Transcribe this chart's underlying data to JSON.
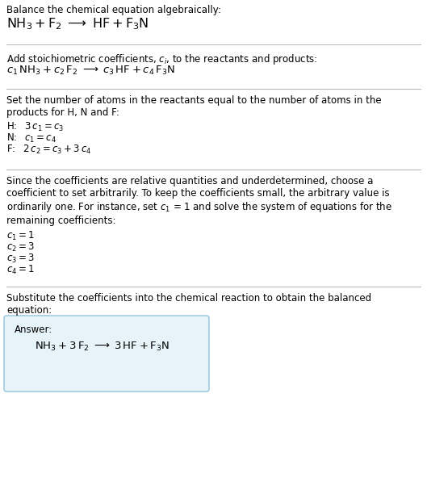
{
  "bg_color": "#ffffff",
  "separator_color": "#bbbbbb",
  "box_edge_color": "#90c4d8",
  "box_face_color": "#e6f4f9",
  "text_color": "#000000",
  "fs_small": 8.0,
  "fs_body": 8.5,
  "fs_chem_large": 11.5,
  "fs_chem_med": 9.5,
  "fs_label": 8.0,
  "sections": {
    "s1_title": "Balance the chemical equation algebraically:",
    "s1_chem": "$\\mathrm{NH_3 + F_2 \\;\\longrightarrow\\; HF + F_3N}$",
    "s2_title": "Add stoichiometric coefficients, $c_i$, to the reactants and products:",
    "s2_chem": "$c_1\\,\\mathrm{NH_3} + c_2\\,\\mathrm{F_2} \\;\\longrightarrow\\; c_3\\,\\mathrm{HF} + c_4\\,\\mathrm{F_3N}$",
    "s3_title": "Set the number of atoms in the reactants equal to the number of atoms in the\nproducts for H, N and F:",
    "s3_H": "H:  $3\\,c_1 = c_3$",
    "s3_N": "N:  $c_1 = c_4$",
    "s3_F": "F:  $2\\,c_2 = c_3 + 3\\,c_4$",
    "s4_title": "Since the coefficients are relative quantities and underdetermined, choose a\ncoefficient to set arbitrarily. To keep the coefficients small, the arbitrary value is\nordinarily one. For instance, set $c_1$ = 1 and solve the system of equations for the\nremaining coefficients:",
    "s4_c1": "$c_1 = 1$",
    "s4_c2": "$c_2 = 3$",
    "s4_c3": "$c_3 = 3$",
    "s4_c4": "$c_4 = 1$",
    "s5_title": "Substitute the coefficients into the chemical reaction to obtain the balanced\nequation:",
    "s5_answer_label": "Answer:",
    "s5_answer_chem": "$\\mathrm{NH_3} + 3\\,\\mathrm{F_2} \\;\\longrightarrow\\; 3\\,\\mathrm{HF} + \\mathrm{F_3N}$"
  }
}
